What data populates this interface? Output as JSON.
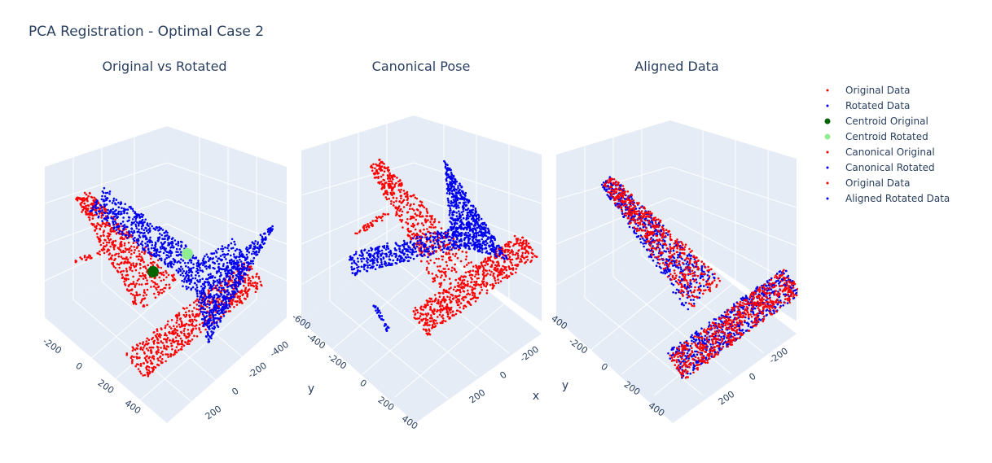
{
  "figure_title": "PCA Registration - Optimal Case 2",
  "colors": {
    "pane": "#e5ecf6",
    "grid": "#ffffff",
    "text": "#2a3f5f",
    "red": "#ff0000",
    "blue": "#0000ee",
    "darkgreen": "#006400",
    "lightgreen": "#90ee90"
  },
  "legend": [
    {
      "name": "Original Data",
      "color": "#ff0000",
      "size": "small"
    },
    {
      "name": "Rotated Data",
      "color": "#0000ee",
      "size": "small"
    },
    {
      "name": "Centroid Original",
      "color": "#006400",
      "size": "large"
    },
    {
      "name": "Centroid Rotated",
      "color": "#90ee90",
      "size": "large"
    },
    {
      "name": "Canonical Original",
      "color": "#ff0000",
      "size": "small"
    },
    {
      "name": "Canonical Rotated",
      "color": "#0000ee",
      "size": "small"
    },
    {
      "name": "Original Data",
      "color": "#ff0000",
      "size": "small"
    },
    {
      "name": "Aligned Rotated Data",
      "color": "#0000ee",
      "size": "small"
    }
  ],
  "chart_data": [
    {
      "type": "scatter",
      "title": "Original vs Rotated",
      "series": [
        "Original Data",
        "Rotated Data",
        "Centroid Original",
        "Centroid Rotated"
      ],
      "ticks_left": [
        "-200",
        "0",
        "200",
        "400"
      ],
      "ticks_right": [
        "-400",
        "-200",
        "0",
        "200"
      ],
      "xlabel": "",
      "ylabel": ""
    },
    {
      "type": "scatter",
      "title": "Canonical Pose",
      "series": [
        "Canonical Original",
        "Canonical Rotated"
      ],
      "ticks_left": [
        "-600",
        "-400",
        "-200",
        "0",
        "200",
        "400"
      ],
      "ticks_right": [
        "-200",
        "0",
        "200"
      ],
      "xlabel": "x",
      "ylabel": "y"
    },
    {
      "type": "scatter",
      "title": "Aligned Data",
      "series": [
        "Original Data",
        "Aligned Rotated Data"
      ],
      "ticks_left": [
        "-400",
        "-200",
        "0",
        "200",
        "400"
      ],
      "ticks_right": [
        "-200",
        "0",
        "200"
      ],
      "xlabel": "",
      "ylabel": "y"
    }
  ]
}
